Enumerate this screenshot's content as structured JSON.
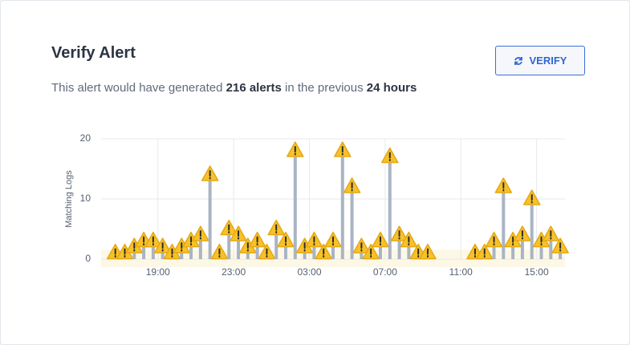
{
  "header": {
    "title": "Verify Alert",
    "button": "VERIFY"
  },
  "summary": {
    "before": "This alert would have generated",
    "count": "216 alerts",
    "middle": "in the previous",
    "period": "24 hours"
  },
  "chart_data": {
    "type": "bar",
    "y_label": "Matching Logs",
    "categories": [
      null,
      null,
      null,
      null,
      null,
      null,
      "19:00",
      null,
      null,
      null,
      null,
      null,
      null,
      null,
      "23:00",
      null,
      null,
      null,
      null,
      null,
      null,
      null,
      "03:00",
      null,
      null,
      null,
      null,
      null,
      null,
      null,
      "07:00",
      null,
      null,
      null,
      null,
      null,
      null,
      null,
      "11:00",
      null,
      null,
      null,
      null,
      null,
      null,
      null,
      "15:00",
      null,
      null
    ],
    "values": [
      0,
      1,
      1,
      2,
      3,
      3,
      2,
      1,
      2,
      3,
      4,
      14,
      1,
      5,
      4,
      2,
      3,
      1,
      5,
      3,
      18,
      2,
      3,
      1,
      3,
      18,
      12,
      2,
      1,
      3,
      17,
      4,
      3,
      1,
      1,
      0,
      0,
      0,
      0,
      1,
      1,
      3,
      12,
      3,
      4,
      10,
      3,
      4,
      2
    ],
    "color": "#a9b4c4",
    "marker_color": "#f7c12a",
    "ylim": [
      0,
      20
    ],
    "yticks": [
      0,
      10,
      20
    ],
    "grid": true
  }
}
